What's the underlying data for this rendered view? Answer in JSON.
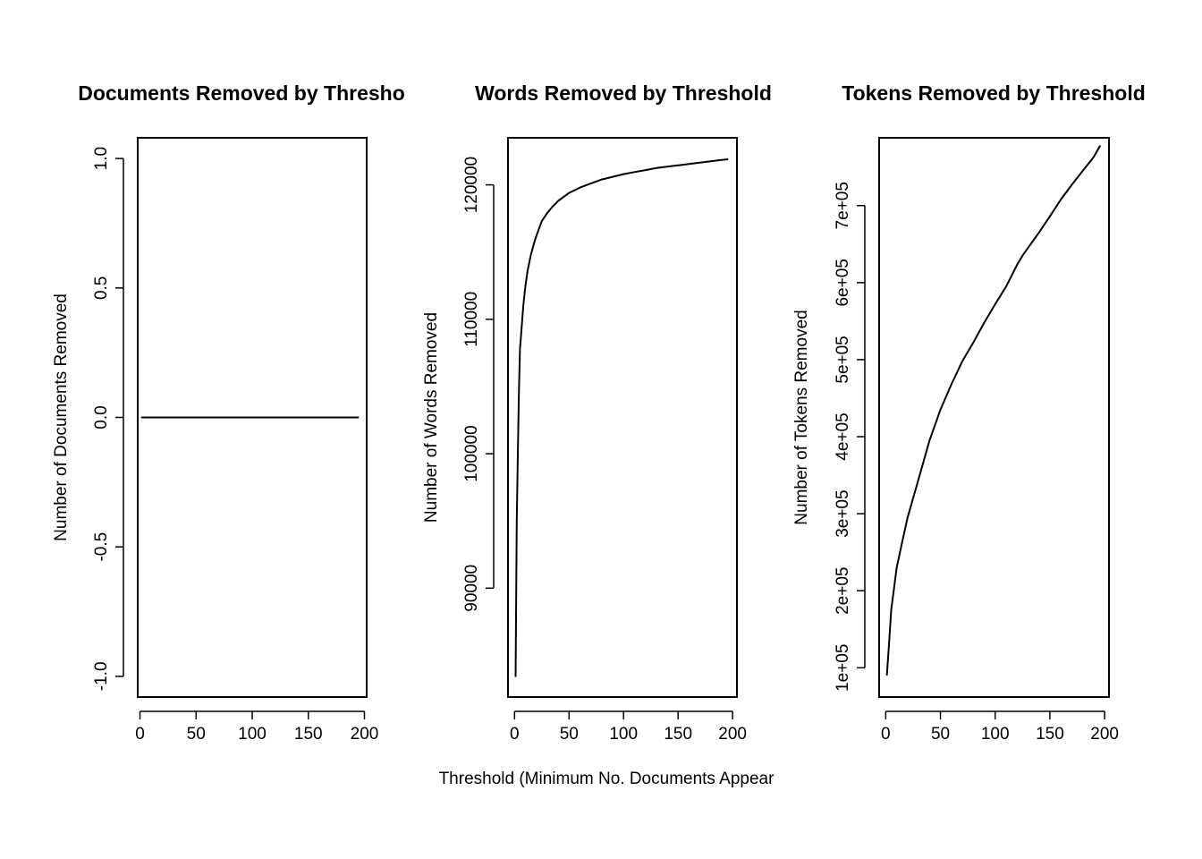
{
  "figure": {
    "shared_xlabel": "Threshold (Minimum No. Documents Appear"
  },
  "chart_data": [
    {
      "type": "line",
      "title": "Documents Removed by Thresho",
      "xlabel": "",
      "ylabel": "Number of Documents Removed",
      "xlim": [
        -2,
        202
      ],
      "ylim": [
        -1.08,
        1.08
      ],
      "xticks": [
        0,
        50,
        100,
        150,
        200
      ],
      "xtick_labels": [
        "0",
        "50",
        "100",
        "150",
        "200"
      ],
      "yticks": [
        -1.0,
        -0.5,
        0.0,
        0.5,
        1.0
      ],
      "ytick_labels": [
        "-1.0",
        "-0.5",
        "0.0",
        "0.5",
        "1.0"
      ],
      "grid": false,
      "series": [
        {
          "x": [
            1,
            50,
            100,
            150,
            195
          ],
          "y": [
            0,
            0,
            0,
            0,
            0
          ]
        }
      ]
    },
    {
      "type": "line",
      "title": "Words Removed by Threshold",
      "xlabel": "",
      "ylabel": "Number of Words Removed",
      "xlim": [
        -6,
        204
      ],
      "ylim": [
        81900,
        123500
      ],
      "xticks": [
        0,
        50,
        100,
        150,
        200
      ],
      "xtick_labels": [
        "0",
        "50",
        "100",
        "150",
        "200"
      ],
      "yticks": [
        90000,
        100000,
        110000,
        120000
      ],
      "ytick_labels": [
        "90000",
        "100000",
        "110000",
        "120000"
      ],
      "grid": false,
      "series": [
        {
          "x": [
            1,
            2,
            3,
            4,
            5,
            6,
            8,
            10,
            12,
            15,
            18,
            20,
            25,
            30,
            35,
            40,
            50,
            60,
            70,
            80,
            90,
            100,
            110,
            120,
            130,
            140,
            150,
            160,
            170,
            180,
            190,
            196
          ],
          "y": [
            83400,
            95000,
            100000,
            104500,
            107800,
            108800,
            111000,
            112500,
            113600,
            114800,
            115700,
            116200,
            117300,
            117900,
            118400,
            118800,
            119400,
            119800,
            120100,
            120400,
            120600,
            120800,
            120950,
            121100,
            121250,
            121350,
            121450,
            121550,
            121650,
            121750,
            121850,
            121900
          ]
        }
      ]
    },
    {
      "type": "line",
      "title": "Tokens Removed by Threshold",
      "xlabel": "",
      "ylabel": "Number of Tokens Removed",
      "xlim": [
        -6,
        204
      ],
      "ylim": [
        62000,
        788000
      ],
      "xticks": [
        0,
        50,
        100,
        150,
        200
      ],
      "xtick_labels": [
        "0",
        "50",
        "100",
        "150",
        "200"
      ],
      "yticks": [
        100000,
        200000,
        300000,
        400000,
        500000,
        600000,
        700000
      ],
      "ytick_labels": [
        "1e+05",
        "2e+05",
        "3e+05",
        "4e+05",
        "5e+05",
        "6e+05",
        "7e+05"
      ],
      "grid": false,
      "series": [
        {
          "x": [
            1,
            3,
            5,
            10,
            15,
            20,
            30,
            40,
            50,
            60,
            70,
            80,
            90,
            100,
            110,
            120,
            125,
            130,
            140,
            150,
            160,
            170,
            180,
            190,
            196
          ],
          "y": [
            90000,
            130000,
            175000,
            230000,
            263000,
            295000,
            345000,
            395000,
            435000,
            468000,
            498000,
            522000,
            548000,
            572000,
            595000,
            623000,
            635000,
            645000,
            665000,
            686000,
            708000,
            727000,
            745000,
            763000,
            778000
          ]
        }
      ]
    }
  ]
}
